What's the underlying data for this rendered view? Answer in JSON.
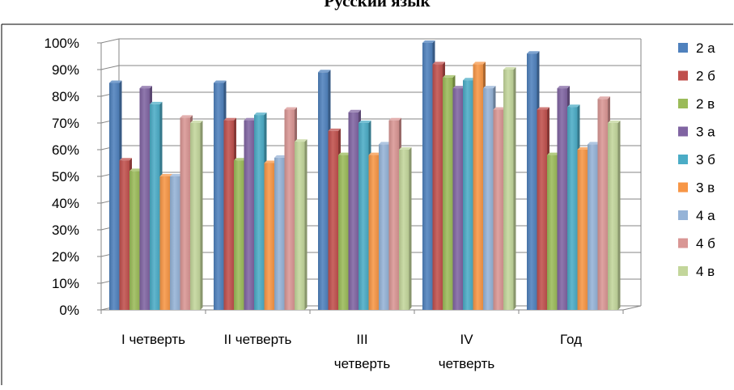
{
  "chart_data": {
    "type": "bar",
    "title": "Русский язык",
    "xlabel": "",
    "ylabel": "",
    "ylim": [
      0,
      100
    ],
    "y_ticks": [
      "0%",
      "10%",
      "20%",
      "30%",
      "40%",
      "50%",
      "60%",
      "70%",
      "80%",
      "90%",
      "100%"
    ],
    "categories": [
      "I четверть",
      "II четверть",
      "III четверть",
      "IV четверть",
      "Год"
    ],
    "category_lines": [
      [
        "I четверть"
      ],
      [
        "II четверть"
      ],
      [
        "III",
        "четверть"
      ],
      [
        "IV",
        "четверть"
      ],
      [
        "Год"
      ]
    ],
    "grid": true,
    "legend_position": "right",
    "series": [
      {
        "name": "2 а",
        "color": "#4F81BD",
        "values": [
          85,
          85,
          89,
          100,
          96
        ]
      },
      {
        "name": "2 б",
        "color": "#C0504D",
        "values": [
          56,
          71,
          67,
          92,
          75
        ]
      },
      {
        "name": "2 в",
        "color": "#9BBB59",
        "values": [
          52,
          56,
          58,
          87,
          58
        ]
      },
      {
        "name": "3 а",
        "color": "#8064A2",
        "values": [
          83,
          71,
          74,
          83,
          83
        ]
      },
      {
        "name": "3 б",
        "color": "#4BACC6",
        "values": [
          77,
          73,
          70,
          86,
          76
        ]
      },
      {
        "name": "3 в",
        "color": "#F79646",
        "values": [
          50,
          55,
          58,
          92,
          60
        ]
      },
      {
        "name": "4 а",
        "color": "#95B3D7",
        "values": [
          50,
          57,
          62,
          83,
          62
        ]
      },
      {
        "name": "4 б",
        "color": "#D99694",
        "values": [
          72,
          75,
          71,
          75,
          79
        ]
      },
      {
        "name": "4 в",
        "color": "#C3D69B",
        "values": [
          70,
          63,
          60,
          90,
          70
        ]
      }
    ]
  }
}
